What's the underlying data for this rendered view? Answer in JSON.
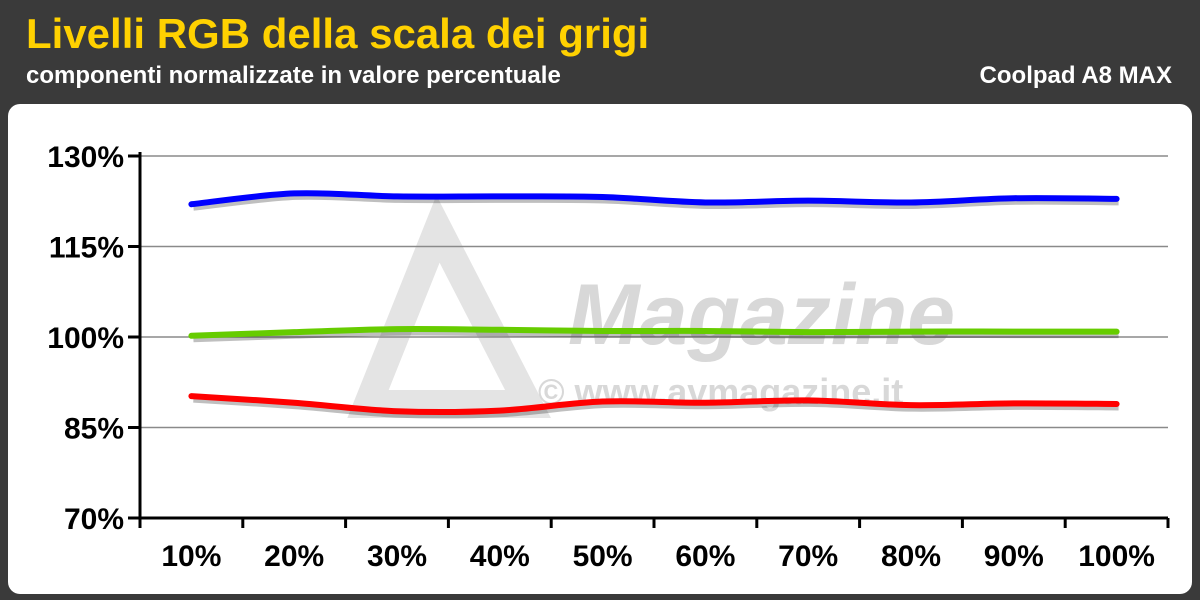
{
  "header": {
    "title": "Livelli RGB della scala dei grigi",
    "subtitle": "componenti normalizzate in valore percentuale",
    "device": "Coolpad A8 MAX"
  },
  "watermark": {
    "brand": "Magazine",
    "url": "© www.avmagazine.it"
  },
  "colors": {
    "title": "#ffd100",
    "background": "#3a3a3a",
    "red": "#ff0000",
    "green": "#66cc00",
    "blue": "#0000ff"
  },
  "chart_data": {
    "type": "line",
    "x": [
      "10%",
      "20%",
      "30%",
      "40%",
      "50%",
      "60%",
      "70%",
      "80%",
      "90%",
      "100%"
    ],
    "yticks": [
      "130%",
      "115%",
      "100%",
      "85%",
      "70%"
    ],
    "ylim": [
      70,
      130
    ],
    "grid": true,
    "series": [
      {
        "color": "#0000ff",
        "values": [
          122,
          123.8,
          123.3,
          123.3,
          123.2,
          122.3,
          122.6,
          122.3,
          123,
          122.9
        ]
      },
      {
        "color": "#66cc00",
        "values": [
          100.2,
          100.8,
          101.3,
          101.2,
          101,
          101,
          100.8,
          100.9,
          100.9,
          100.9
        ]
      },
      {
        "color": "#ff0000",
        "values": [
          90.2,
          89.1,
          87.7,
          87.8,
          89.3,
          89.1,
          89.5,
          88.7,
          89.0,
          88.9
        ]
      }
    ]
  }
}
